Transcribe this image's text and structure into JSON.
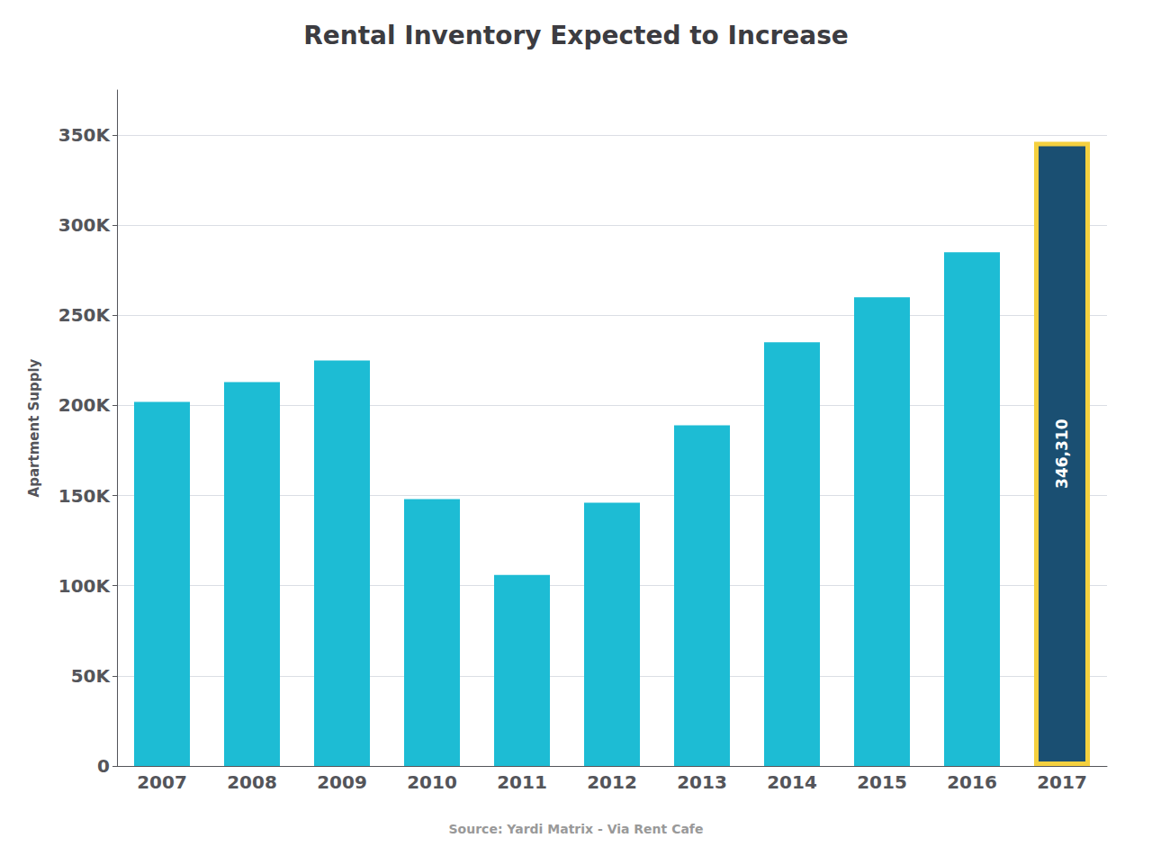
{
  "chart_data": {
    "type": "bar",
    "title": "Rental Inventory Expected to Increase",
    "ylabel": "Apartment Supply",
    "source": "Source: Yardi Matrix - Via Rent Cafe",
    "categories": [
      "2007",
      "2008",
      "2009",
      "2010",
      "2011",
      "2012",
      "2013",
      "2014",
      "2015",
      "2016",
      "2017"
    ],
    "values": [
      202000,
      213000,
      225000,
      148000,
      106000,
      146000,
      189000,
      235000,
      260000,
      285000,
      346310
    ],
    "colors": [
      "#1DBCD4",
      "#1DBCD4",
      "#1DBCD4",
      "#1DBCD4",
      "#1DBCD4",
      "#1DBCD4",
      "#1DBCD4",
      "#1DBCD4",
      "#1DBCD4",
      "#1DBCD4",
      "#1A4F72"
    ],
    "annotations": [
      {
        "text": "346,310",
        "category": "2017",
        "color": "#F4D03F"
      }
    ],
    "ylim": [
      0,
      375000
    ],
    "yticks": [
      0,
      {
        "value": 50000,
        "label": "50K"
      },
      {
        "value": 100000,
        "label": "100K"
      },
      {
        "value": 150000,
        "label": "150K"
      },
      {
        "value": 200000,
        "label": "200K"
      },
      {
        "value": 250000,
        "label": "250K"
      },
      {
        "value": 300000,
        "label": "300K"
      },
      {
        "value": 350000,
        "label": "350K"
      }
    ],
    "grid": true
  }
}
